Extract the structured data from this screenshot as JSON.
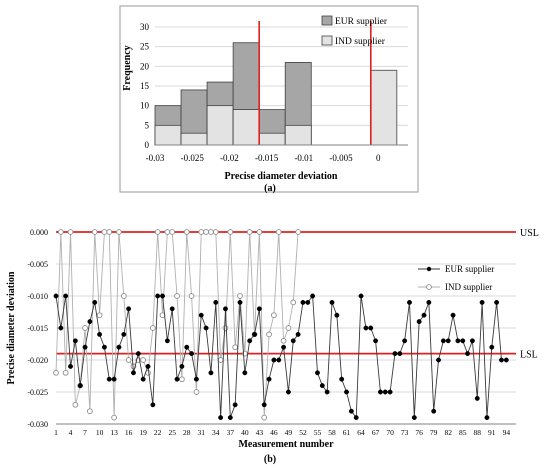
{
  "chart_data": [
    {
      "type": "histogram",
      "panel_label": "(a)",
      "xlabel": "Precise diameter deviation",
      "ylabel": "Frequency",
      "xlim": [
        -0.03,
        0.004
      ],
      "ylim": [
        0,
        30
      ],
      "x_ticks": [
        -0.03,
        -0.025,
        -0.02,
        -0.015,
        -0.01,
        -0.005,
        0
      ],
      "x_tick_labels": [
        "-0.03",
        "-0.025",
        "-0.02",
        "-0.015",
        "-0.01",
        "-0.005",
        "0"
      ],
      "y_ticks": [
        0,
        5,
        10,
        15,
        20,
        25,
        30
      ],
      "y_tick_labels": [
        "0",
        "5",
        "10",
        "15",
        "20",
        "25",
        "30"
      ],
      "bins": [
        {
          "from": -0.03,
          "to": -0.0265,
          "eur": 10,
          "ind": 5
        },
        {
          "from": -0.0265,
          "to": -0.023,
          "eur": 14,
          "ind": 3
        },
        {
          "from": -0.023,
          "to": -0.0195,
          "eur": 16,
          "ind": 10
        },
        {
          "from": -0.0195,
          "to": -0.016,
          "eur": 26,
          "ind": 9
        },
        {
          "from": -0.016,
          "to": -0.0125,
          "eur": 9,
          "ind": 3
        },
        {
          "from": -0.0125,
          "to": -0.009,
          "eur": 21,
          "ind": 5
        },
        {
          "from": -0.001,
          "to": 0.0025,
          "eur": 0,
          "ind": 19
        }
      ],
      "series": [
        {
          "name": "EUR supplier",
          "color": "#a6a6a6"
        },
        {
          "name": "IND supplier",
          "color": "#e3e3e3"
        }
      ],
      "limit_lines": [
        {
          "x": -0.016,
          "color": "#e02020"
        },
        {
          "x": -0.001,
          "color": "#e02020"
        }
      ],
      "legend_position": "top-right",
      "grid": "horizontal"
    },
    {
      "type": "line",
      "panel_label": "(b)",
      "xlabel": "Measurement number",
      "ylabel": "Precise diameter deviation",
      "xlim": [
        1,
        96
      ],
      "ylim": [
        -0.03,
        0
      ],
      "x_ticks": [
        1,
        4,
        7,
        10,
        13,
        16,
        19,
        22,
        25,
        28,
        31,
        34,
        37,
        40,
        43,
        46,
        49,
        52,
        55,
        58,
        61,
        64,
        67,
        70,
        73,
        76,
        79,
        82,
        85,
        88,
        91,
        94
      ],
      "y_ticks": [
        0,
        -0.005,
        -0.01,
        -0.015,
        -0.02,
        -0.025,
        -0.03
      ],
      "y_tick_labels": [
        "0.000",
        "-0.005",
        "-0.010",
        "-0.015",
        "-0.020",
        "-0.025",
        "-0.030"
      ],
      "limits": [
        {
          "label": "USL",
          "y": 0
        },
        {
          "label": "LSL",
          "y": -0.019
        }
      ],
      "limit_color": "#e02020",
      "legend_position": "top-right",
      "grid": "horizontal",
      "series": [
        {
          "name": "EUR supplier",
          "marker": "filled",
          "color": "#000000",
          "values": [
            -0.01,
            -0.015,
            -0.01,
            -0.021,
            -0.017,
            -0.024,
            -0.018,
            -0.014,
            -0.011,
            -0.016,
            -0.018,
            -0.023,
            -0.023,
            -0.018,
            -0.016,
            -0.012,
            -0.022,
            -0.019,
            -0.023,
            -0.021,
            -0.027,
            -0.01,
            -0.01,
            -0.017,
            -0.012,
            -0.023,
            -0.021,
            -0.018,
            -0.019,
            -0.023,
            -0.013,
            -0.015,
            -0.022,
            -0.011,
            -0.029,
            -0.012,
            -0.029,
            -0.027,
            -0.011,
            -0.022,
            -0.017,
            -0.016,
            -0.012,
            -0.027,
            -0.023,
            -0.02,
            -0.02,
            -0.018,
            -0.025,
            -0.017,
            -0.016,
            -0.011,
            -0.011,
            -0.01,
            -0.022,
            -0.024,
            -0.025,
            -0.011,
            -0.013,
            -0.023,
            -0.025,
            -0.028,
            -0.029,
            -0.01,
            -0.015,
            -0.015,
            -0.017,
            -0.025,
            -0.025,
            -0.025,
            -0.019,
            -0.019,
            -0.017,
            -0.011,
            -0.029,
            -0.014,
            -0.013,
            -0.011,
            -0.028,
            -0.02,
            -0.017,
            -0.017,
            -0.013,
            -0.017,
            -0.017,
            -0.019,
            -0.017,
            -0.026,
            -0.011,
            -0.029,
            -0.018,
            -0.011,
            -0.02,
            -0.02
          ]
        },
        {
          "name": "IND supplier",
          "marker": "hollow",
          "color": "#a0a0a0",
          "values": [
            -0.022,
            0,
            -0.022,
            0,
            -0.027,
            -0.024,
            -0.015,
            -0.028,
            0,
            -0.013,
            0,
            0,
            -0.029,
            0,
            -0.01,
            -0.02,
            -0.021,
            -0.02,
            -0.02,
            -0.022,
            -0.015,
            0,
            -0.013,
            0,
            0,
            -0.01,
            -0.023,
            0,
            -0.01,
            -0.025,
            0,
            0,
            0,
            0,
            -0.02,
            -0.015,
            0,
            -0.018,
            -0.01,
            -0.019,
            0,
            -0.016,
            0,
            -0.029,
            -0.016,
            -0.013,
            0,
            -0.017,
            -0.015,
            -0.011,
            0
          ]
        }
      ]
    }
  ]
}
